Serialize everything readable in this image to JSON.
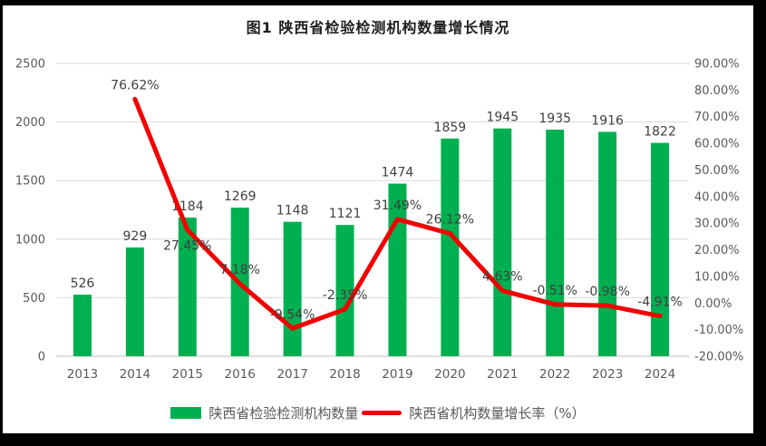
{
  "frame": {
    "title": "图1 陕西省检验检测机构数量增长情况"
  },
  "legend": {
    "bar_label": "陕西省检验检测机构数量",
    "line_label": "陕西省机构数量增长率（%）"
  },
  "colors": {
    "bar": "#00B050",
    "line": "#F20000",
    "grid": "#D9D9D9",
    "axis_line": "#BFBFBF",
    "tick_text": "#595959",
    "data_label": "#404040",
    "title_text": "#1F1F1F",
    "frame_border": "#000000",
    "background": "#FFFFFF"
  },
  "chart_data": {
    "type": "bar",
    "subtype": "bar+line combo, dual axis",
    "title": "图1 陕西省检验检测机构数量增长情况",
    "categories": [
      "2013",
      "2014",
      "2015",
      "2016",
      "2017",
      "2018",
      "2019",
      "2020",
      "2021",
      "2022",
      "2023",
      "2024"
    ],
    "series": [
      {
        "name": "陕西省检验检测机构数量",
        "type": "bar",
        "axis": "left",
        "values": [
          526,
          929,
          1184,
          1269,
          1148,
          1121,
          1474,
          1859,
          1945,
          1935,
          1916,
          1822
        ]
      },
      {
        "name": "陕西省机构数量增长率（%）",
        "type": "line",
        "axis": "right",
        "values": [
          null,
          76.62,
          27.45,
          7.18,
          -9.54,
          -2.35,
          31.49,
          26.12,
          4.63,
          -0.51,
          -0.98,
          -4.91
        ],
        "labels": [
          "",
          "76.62%",
          "27.45%",
          "7.18%",
          "-9.54%",
          "-2.35%",
          "31.49%",
          "26.12%",
          "4.63%",
          "-0.51%",
          "-0.98%",
          "-4.91%"
        ],
        "label_positions": [
          null,
          "above",
          "below",
          "above",
          "above",
          "above",
          "above",
          "above",
          "above",
          "above",
          "above",
          "above"
        ]
      }
    ],
    "left_axis": {
      "range": [
        0,
        2500
      ],
      "ticks": [
        0,
        500,
        1000,
        1500,
        2000,
        2500
      ],
      "labels": [
        "0",
        "500",
        "1000",
        "1500",
        "2000",
        "2500"
      ]
    },
    "right_axis": {
      "range": [
        -20,
        90
      ],
      "ticks": [
        90,
        80,
        70,
        60,
        50,
        40,
        30,
        20,
        10,
        0,
        -10,
        -20
      ],
      "labels": [
        "90.00%",
        "80.00%",
        "70.00%",
        "60.00%",
        "50.00%",
        "40.00%",
        "30.00%",
        "20.00%",
        "10.00%",
        "0.00%",
        "-10.00%",
        "-20.00%"
      ]
    },
    "grid": "horizontal only",
    "legend_position": "bottom"
  }
}
